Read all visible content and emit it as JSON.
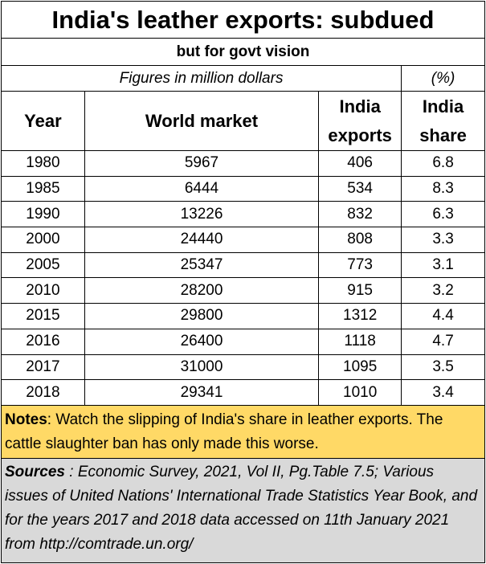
{
  "title": "India's leather exports: subdued",
  "subtitle": "but  for govt vision",
  "units_note": "Figures in million dollars",
  "percent_note": "(%)",
  "headers": {
    "year": "Year",
    "world_market": "World market",
    "india_exports_line1": "India",
    "india_exports_line2": "exports",
    "india_share_line1": "India",
    "india_share_line2": "share"
  },
  "rows": [
    {
      "year": "1980",
      "world": "5967",
      "india": "406",
      "share": "6.8"
    },
    {
      "year": "1985",
      "world": "6444",
      "india": "534",
      "share": "8.3"
    },
    {
      "year": "1990",
      "world": "13226",
      "india": "832",
      "share": "6.3"
    },
    {
      "year": "2000",
      "world": "24440",
      "india": "808",
      "share": "3.3"
    },
    {
      "year": "2005",
      "world": "25347",
      "india": "773",
      "share": "3.1"
    },
    {
      "year": "2010",
      "world": "28200",
      "india": "915",
      "share": "3.2"
    },
    {
      "year": "2015",
      "world": "29800",
      "india": "1312",
      "share": "4.4"
    },
    {
      "year": "2016",
      "world": "26400",
      "india": "1118",
      "share": "4.7"
    },
    {
      "year": "2017",
      "world": "31000",
      "india": "1095",
      "share": "3.5"
    },
    {
      "year": "2018",
      "world": "29341",
      "india": "1010",
      "share": "3.4"
    }
  ],
  "notes": {
    "label": "Notes",
    "text": ": Watch the slipping of India's share in leather exports. The cattle slaughter ban has only made this worse."
  },
  "sources": {
    "label": "Sources",
    "text": " : Economic Survey, 2021, Vol II, Pg.Table 7.5; Various issues of United Nations' International Trade Statistics Year Book, and for the years 2017 and 2018 data accessed on 11th January 2021 from http://comtrade.un.org/"
  },
  "colors": {
    "notes_bg": "#FFD966",
    "sources_bg": "#D9D9D9"
  },
  "chart_data": {
    "type": "table",
    "title": "India's leather exports: subdued",
    "subtitle": "but  for govt vision",
    "columns": [
      "Year",
      "World market",
      "India exports",
      "India share"
    ],
    "categories": [
      "1980",
      "1985",
      "1990",
      "2000",
      "2005",
      "2010",
      "2015",
      "2016",
      "2017",
      "2018"
    ],
    "series": [
      {
        "name": "World market",
        "values": [
          5967,
          6444,
          13226,
          24440,
          25347,
          28200,
          29800,
          26400,
          31000,
          29341
        ]
      },
      {
        "name": "India exports",
        "values": [
          406,
          534,
          832,
          808,
          773,
          915,
          1312,
          1118,
          1095,
          1010
        ]
      },
      {
        "name": "India share",
        "values": [
          6.8,
          8.3,
          6.3,
          3.3,
          3.1,
          3.2,
          4.4,
          4.7,
          3.5,
          3.4
        ]
      }
    ]
  }
}
